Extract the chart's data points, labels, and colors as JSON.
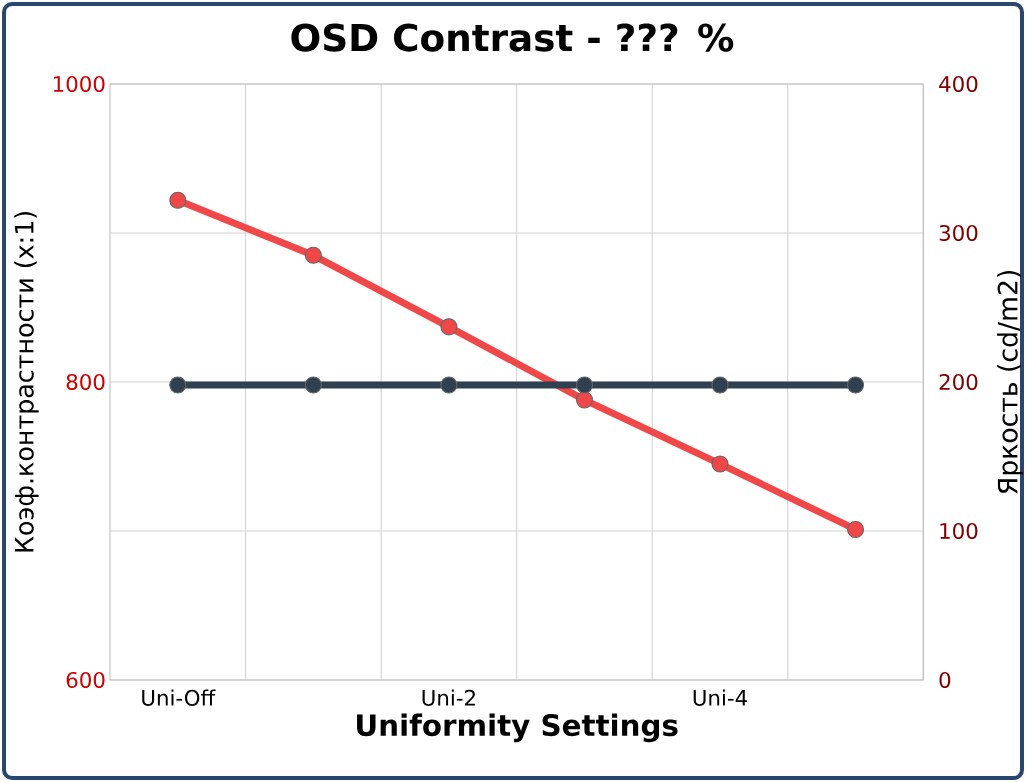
{
  "chart_data": {
    "type": "line",
    "title": "OSD Contrast - ??? %",
    "xlabel": "Uniformity Settings",
    "ylabel": "Коэф.контрастности (x:1)",
    "y2label": "Яркость (cd/m2)",
    "categories": [
      "Uni-Off",
      null,
      "Uni-2",
      null,
      "Uni-4",
      null
    ],
    "series": [
      {
        "color": "#f04848",
        "values": [
          922,
          885,
          837,
          788,
          745,
          701
        ]
      },
      {
        "color": "#2f4050",
        "axis": "y2",
        "values": [
          198,
          198,
          198,
          198,
          198,
          198
        ]
      }
    ],
    "ylim": [
      600,
      1000
    ],
    "yticks": [
      600,
      {
        "value": 700,
        "label": null
      },
      800,
      {
        "value": 900,
        "label": null
      },
      1000
    ],
    "y2lim": [
      0,
      400
    ],
    "y2ticks": [
      0,
      100,
      200,
      300,
      400
    ],
    "grid": true,
    "marker": "circle",
    "line_style": "solid"
  }
}
